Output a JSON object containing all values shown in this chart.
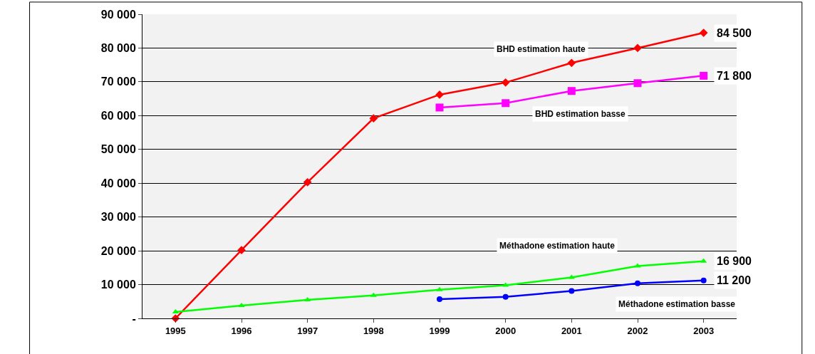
{
  "chart_data": {
    "type": "line",
    "categories": [
      "1995",
      "1996",
      "1997",
      "1998",
      "1999",
      "2000",
      "2001",
      "2002",
      "2003"
    ],
    "series": [
      {
        "name": "BHD estimation haute",
        "color": "#ff0000",
        "marker": "diamond",
        "values": [
          0,
          20200,
          40300,
          59200,
          66200,
          69800,
          75600,
          80000,
          84500
        ],
        "value_labels": [
          null,
          null,
          null,
          null,
          null,
          null,
          null,
          null,
          "84 500"
        ]
      },
      {
        "name": "BHD estimation basse",
        "color": "#ff00ff",
        "marker": "square",
        "values": [
          null,
          null,
          null,
          null,
          62400,
          63700,
          67300,
          69600,
          71800
        ],
        "value_labels": [
          null,
          null,
          null,
          null,
          null,
          null,
          null,
          null,
          "71 800"
        ]
      },
      {
        "name": "Méthadone estimation haute",
        "color": "#00ff00",
        "marker": "triangle",
        "values": [
          1900,
          3800,
          5500,
          6800,
          8500,
          9800,
          12100,
          15500,
          16900
        ],
        "value_labels": [
          null,
          null,
          null,
          null,
          null,
          null,
          null,
          null,
          "16 900"
        ]
      },
      {
        "name": "Méthadone estimation basse",
        "color": "#0000ff",
        "marker": "circle",
        "values": [
          null,
          null,
          null,
          null,
          5700,
          6400,
          8100,
          10400,
          11200
        ],
        "value_labels": [
          null,
          null,
          null,
          null,
          null,
          null,
          null,
          null,
          "11 200"
        ]
      }
    ],
    "ylim": [
      0,
      90000
    ],
    "yticks": [
      {
        "value": 0,
        "label": "-"
      },
      {
        "value": 10000,
        "label": "10 000"
      },
      {
        "value": 20000,
        "label": "20 000"
      },
      {
        "value": 30000,
        "label": "30 000"
      },
      {
        "value": 40000,
        "label": "40 000"
      },
      {
        "value": 50000,
        "label": "50 000"
      },
      {
        "value": 60000,
        "label": "60 000"
      },
      {
        "value": 70000,
        "label": "70 000"
      },
      {
        "value": 80000,
        "label": "80 000"
      },
      {
        "value": 90000,
        "label": "90 000"
      }
    ],
    "grid": "y",
    "legend": false,
    "line_style": "solid"
  }
}
